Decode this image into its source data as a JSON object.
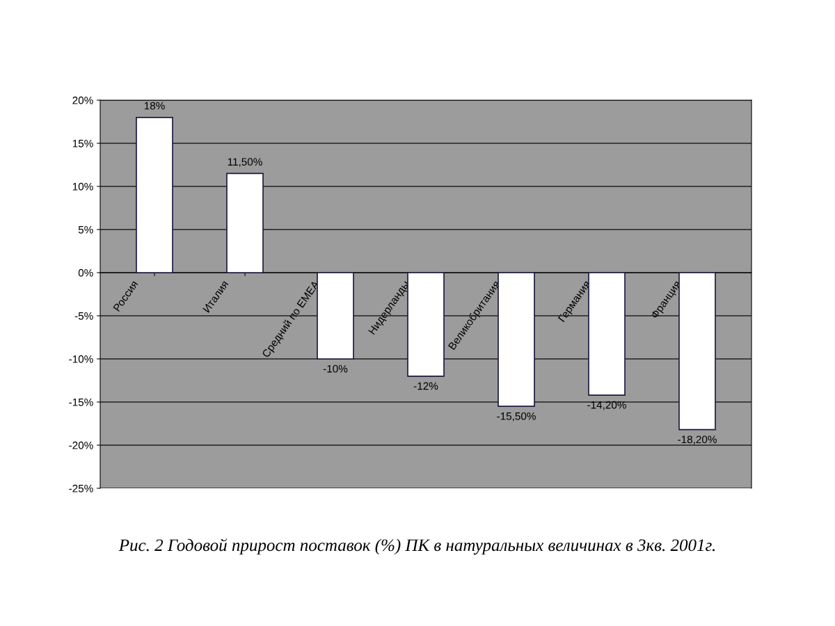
{
  "chart_data": {
    "type": "bar",
    "categories": [
      "Россия",
      "Италия",
      "Средний по EMEA",
      "Нидерланды",
      "Великобритания",
      "Германия",
      "Франция"
    ],
    "values": [
      18,
      11.5,
      -10,
      -12,
      -15.5,
      -14.2,
      -18.2
    ],
    "value_labels": [
      "18%",
      "11,50%",
      "-10%",
      "-12%",
      "-15,50%",
      "-14,20%",
      "-18,20%"
    ],
    "color": "#ffffff",
    "ylim": [
      -25,
      20
    ],
    "yticks": [
      {
        "value": -25,
        "label": "-25%"
      },
      {
        "value": -20,
        "label": "-20%"
      },
      {
        "value": -15,
        "label": "-15%"
      },
      {
        "value": -10,
        "label": "-10%"
      },
      {
        "value": -5,
        "label": "-5%"
      },
      {
        "value": 0,
        "label": "0%"
      },
      {
        "value": 5,
        "label": "5%"
      },
      {
        "value": 10,
        "label": "10%"
      },
      {
        "value": 15,
        "label": "15%"
      },
      {
        "value": 20,
        "label": "20%"
      }
    ],
    "grid": "y",
    "annotations": [
      "Рис. 2 Годовой прирост поставок (%) ПК в натуральных величинах в 3кв. 2001г."
    ]
  }
}
